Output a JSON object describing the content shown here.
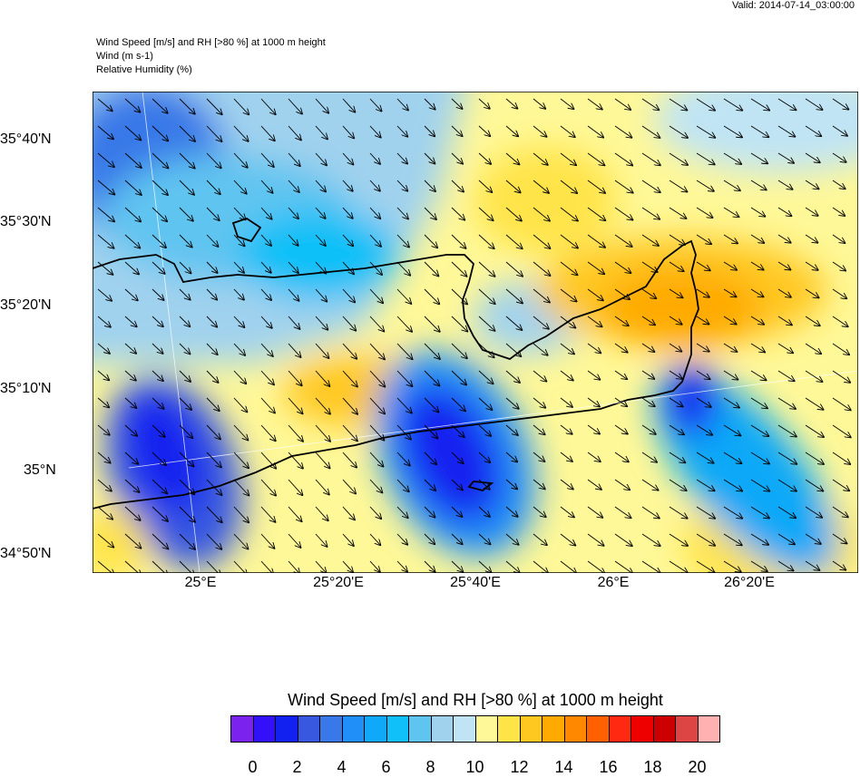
{
  "valid": "Valid: 2014-07-14_03:00:00",
  "subtitles": [
    "Wind Speed [m/s] and RH [>80 %] at 1000 m height",
    "Wind   (m s-1)",
    "Relative Humidity   (%)"
  ],
  "lat_labels": [
    "35°40'N",
    "35°30'N",
    "35°20'N",
    "35°10'N",
    "35°N",
    "34°50'N"
  ],
  "lon_labels": [
    "25°E",
    "25°20'E",
    "25°40'E",
    "26°E",
    "26°20'E"
  ],
  "colorbar": {
    "title": "Wind Speed [m/s] and RH [>80 %] at 1000 m height",
    "labels": [
      "0",
      "2",
      "4",
      "6",
      "8",
      "10",
      "12",
      "14",
      "16",
      "18",
      "20"
    ],
    "colors": [
      "#7b22ee",
      "#3210f8",
      "#1220f0",
      "#3858e0",
      "#3878e8",
      "#2090f8",
      "#10a8f8",
      "#10c0f8",
      "#60c4f0",
      "#a0d2ee",
      "#c0e4f4",
      "#fff898",
      "#ffe448",
      "#ffc820",
      "#ffaa00",
      "#ff8800",
      "#ff6000",
      "#ff2810",
      "#ee0000",
      "#cc0000",
      "#dd4444",
      "#ffb0b0"
    ]
  },
  "chart_data": {
    "type": "heatmap",
    "title": "Wind Speed [m/s] and RH [>80 %] at 1000 m height",
    "variables": [
      "Wind (m s-1)",
      "Relative Humidity (%)"
    ],
    "lat_range": [
      "34°48'N",
      "35°46'N"
    ],
    "lon_range": [
      "24°44'E",
      "26°35'E"
    ],
    "color_scale_range": [
      -1,
      21
    ],
    "wind_direction": "north-westerly (arrows point south-east)"
  }
}
